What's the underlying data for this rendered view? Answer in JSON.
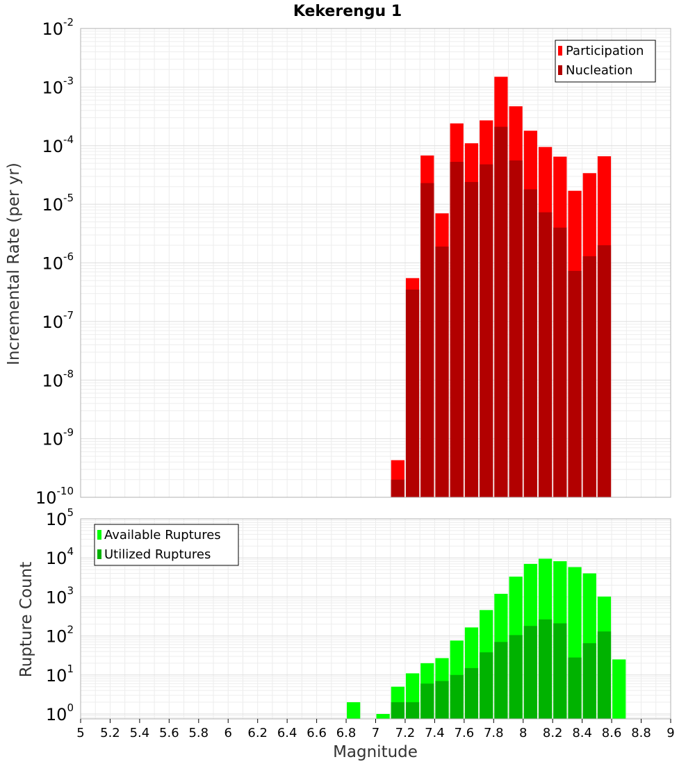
{
  "chart_data": [
    {
      "type": "bar",
      "title": "Kekerengu 1",
      "ylabel": "Incremental Rate (per yr)",
      "yscale": "log",
      "ylim": [
        1e-10,
        0.01
      ],
      "xlim": [
        5,
        9
      ],
      "y_ticks": [
        {
          "base": "10",
          "exp": "-2"
        },
        {
          "base": "10",
          "exp": "-3"
        },
        {
          "base": "10",
          "exp": "-4"
        },
        {
          "base": "10",
          "exp": "-5"
        },
        {
          "base": "10",
          "exp": "-6"
        },
        {
          "base": "10",
          "exp": "-7"
        },
        {
          "base": "10",
          "exp": "-8"
        },
        {
          "base": "10",
          "exp": "-9"
        },
        {
          "base": "10",
          "exp": "-10"
        }
      ],
      "legend_position": "top-right",
      "x": [
        7.15,
        7.25,
        7.35,
        7.45,
        7.55,
        7.65,
        7.75,
        7.85,
        7.95,
        8.05,
        8.15,
        8.25,
        8.35,
        8.45,
        8.55
      ],
      "series": [
        {
          "name": "Participation",
          "color": "#ff0000",
          "values": [
            4.3e-10,
            5.5e-07,
            6.8e-05,
            7e-06,
            0.00024,
            0.00011,
            0.00027,
            0.0015,
            0.00047,
            0.00018,
            9.5e-05,
            6.5e-05,
            1.7e-05,
            3.4e-05,
            6.6e-05
          ]
        },
        {
          "name": "Nucleation",
          "color": "#b20000",
          "values": [
            2e-10,
            3.5e-07,
            2.3e-05,
            1.9e-06,
            5.3e-05,
            2.4e-05,
            4.8e-05,
            0.00021,
            5.6e-05,
            1.8e-05,
            7.3e-06,
            4e-06,
            7.3e-07,
            1.3e-06,
            2e-06
          ]
        }
      ]
    },
    {
      "type": "bar",
      "xlabel": "Magnitude",
      "ylabel": "Rupture Count",
      "yscale": "log",
      "ylim": [
        0.75,
        100000
      ],
      "xlim": [
        5,
        9
      ],
      "y_ticks": [
        {
          "value": 1,
          "base": "10",
          "exp": "0"
        },
        {
          "value": 10,
          "base": "10",
          "exp": "1"
        },
        {
          "value": 100,
          "base": "10",
          "exp": "2"
        },
        {
          "value": 1000,
          "base": "10",
          "exp": "3"
        },
        {
          "value": 10000,
          "base": "10",
          "exp": "4"
        },
        {
          "value": 100000,
          "base": "10",
          "exp": "5"
        }
      ],
      "x_ticks": [
        "5",
        "5.2",
        "5.4",
        "5.6",
        "5.8",
        "6",
        "6.2",
        "6.4",
        "6.6",
        "6.8",
        "7",
        "7.2",
        "7.4",
        "7.6",
        "7.8",
        "8",
        "8.2",
        "8.4",
        "8.6",
        "8.8",
        "9"
      ],
      "legend_position": "top-left",
      "x": [
        6.85,
        7.05,
        7.15,
        7.25,
        7.35,
        7.45,
        7.55,
        7.65,
        7.75,
        7.85,
        7.95,
        8.05,
        8.15,
        8.25,
        8.35,
        8.45,
        8.55,
        8.65
      ],
      "series": [
        {
          "name": "Available Ruptures",
          "color": "#00ff00",
          "values": [
            2,
            1,
            5,
            11,
            20,
            27,
            76,
            165,
            460,
            1200,
            3300,
            7000,
            9500,
            8200,
            5800,
            4000,
            1020,
            25
          ]
        },
        {
          "name": "Utilized Ruptures",
          "color": "#00b200",
          "values": [
            0,
            0,
            2,
            2,
            6,
            7,
            10,
            15,
            38,
            70,
            105,
            180,
            265,
            210,
            28,
            65,
            130,
            0
          ]
        }
      ]
    }
  ]
}
